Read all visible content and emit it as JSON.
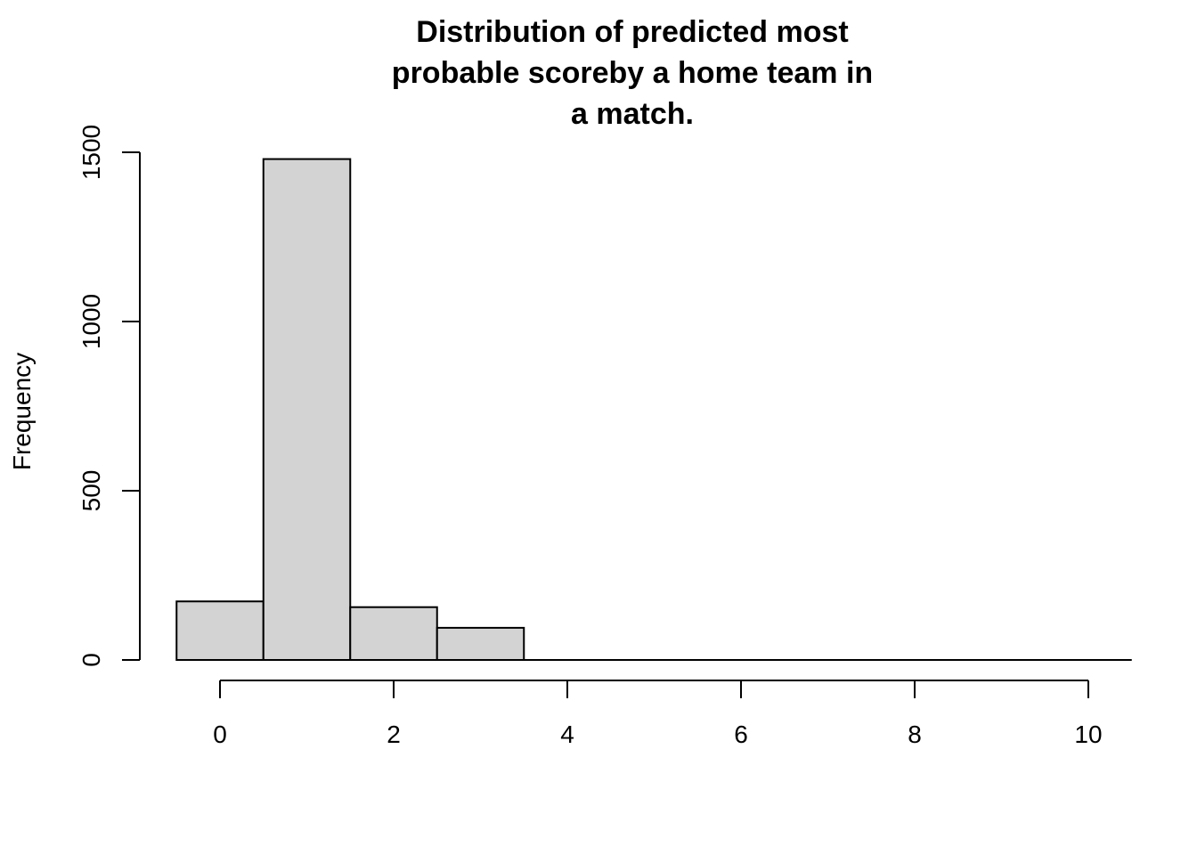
{
  "chart_data": {
    "type": "bar",
    "title_lines": [
      "Distribution of predicted most",
      "probable scoreby a home team in",
      "a match."
    ],
    "xlabel": "",
    "ylabel": "Frequency",
    "bins": [
      {
        "start": -0.5,
        "end": 0.5,
        "value": 173
      },
      {
        "start": 0.5,
        "end": 1.5,
        "value": 1480
      },
      {
        "start": 1.5,
        "end": 2.5,
        "value": 156
      },
      {
        "start": 2.5,
        "end": 3.5,
        "value": 95
      },
      {
        "start": 3.5,
        "end": 4.5,
        "value": 0
      },
      {
        "start": 4.5,
        "end": 5.5,
        "value": 0
      },
      {
        "start": 5.5,
        "end": 6.5,
        "value": 0
      },
      {
        "start": 6.5,
        "end": 7.5,
        "value": 0
      },
      {
        "start": 7.5,
        "end": 8.5,
        "value": 0
      },
      {
        "start": 8.5,
        "end": 9.5,
        "value": 0
      },
      {
        "start": 9.5,
        "end": 10.5,
        "value": 0
      }
    ],
    "x_ticks": [
      0,
      2,
      4,
      6,
      8,
      10
    ],
    "y_ticks": [
      0,
      500,
      1000,
      1500
    ],
    "xlim": [
      -0.5,
      10.5
    ],
    "ylim": [
      0,
      1500
    ],
    "grid": false,
    "bar_fill": "#d3d3d3",
    "bar_stroke": "#000000"
  }
}
